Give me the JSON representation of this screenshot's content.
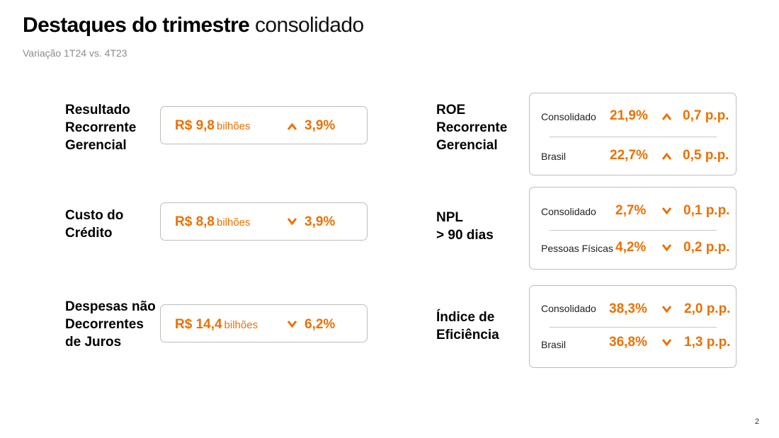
{
  "header": {
    "title_bold": "Destaques do trimestre",
    "title_light": "consolidado",
    "subtitle": "Variação 1T24 vs. 4T23"
  },
  "accent_color": "#ec7000",
  "left_metrics": [
    {
      "label": [
        "Resultado",
        "Recorrente",
        "Gerencial"
      ],
      "value": "R$ 9,8",
      "unit": "bilhões",
      "direction": "up",
      "change": "3,9%"
    },
    {
      "label": [
        "Custo do",
        "Crédito"
      ],
      "value": "R$ 8,8",
      "unit": "bilhões",
      "direction": "down",
      "change": "3,9%"
    },
    {
      "label": [
        "Despesas não",
        "Decorrentes",
        "de Juros"
      ],
      "value": "R$ 14,4",
      "unit": "bilhões",
      "direction": "down",
      "change": "6,2%"
    }
  ],
  "right_metrics": [
    {
      "label": [
        "ROE",
        "Recorrente",
        "Gerencial"
      ],
      "rows": [
        {
          "name": "Consolidado",
          "value": "21,9%",
          "direction": "up",
          "change": "0,7 p.p."
        },
        {
          "name": "Brasil",
          "value": "22,7%",
          "direction": "up",
          "change": "0,5 p.p."
        }
      ]
    },
    {
      "label": [
        "NPL",
        "> 90 dias"
      ],
      "rows": [
        {
          "name": "Consolidado",
          "value": "2,7%",
          "direction": "down",
          "change": "0,1 p.p."
        },
        {
          "name": "Pessoas Físicas",
          "value": "4,2%",
          "direction": "down",
          "change": "0,2 p.p."
        }
      ]
    },
    {
      "label": [
        "Índice de",
        "Eficiência"
      ],
      "rows": [
        {
          "name": "Consolidado",
          "value": "38,3%",
          "direction": "down",
          "change": "2,0 p.p."
        },
        {
          "name": "Brasil",
          "value": "36,8%",
          "direction": "down",
          "change": "1,3 p.p."
        }
      ]
    }
  ],
  "page_number": "2"
}
